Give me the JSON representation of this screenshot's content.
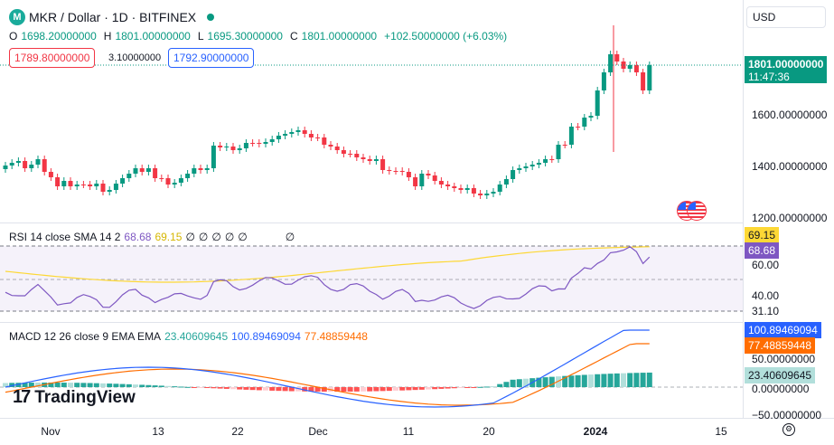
{
  "header": {
    "symbol_title": "MKR / Dollar · 1D · BITFINEX",
    "ohlc": {
      "o_label": "O",
      "o": "1698.20000000",
      "h_label": "H",
      "h": "1801.00000000",
      "l_label": "L",
      "l": "1695.30000000",
      "c_label": "C",
      "c": "1801.00000000",
      "change": "+102.50000000 (+6.03%)"
    },
    "sell_price": "1789.80000000",
    "spread": "3.10000000",
    "buy_price": "1792.90000000"
  },
  "currency": "USD",
  "price_axis": {
    "current_price": "1801.00000000",
    "countdown": "11:47:36",
    "ticks": [
      "1600.00000000",
      "1400.00000000",
      "1200.00000000"
    ]
  },
  "rsi": {
    "legend": "RSI 14 close SMA 14 2",
    "value": "68.68",
    "sma": "69.15",
    "zeros": [
      "∅",
      "∅",
      "∅",
      "∅",
      "∅"
    ],
    "extra_zero": "∅",
    "ticks": [
      "60.00",
      "40.00",
      "31.10"
    ],
    "tag_sma": "69.15",
    "tag_rsi": "68.68"
  },
  "macd": {
    "legend": "MACD 12 26 close 9 EMA EMA",
    "hist": "23.40609645",
    "macd": "100.89469094",
    "signal": "77.48859448",
    "ticks": [
      "50.00000000",
      "0.00000000",
      "−50.00000000"
    ]
  },
  "x_axis": {
    "labels": [
      {
        "t": "Nov",
        "x": 56
      },
      {
        "t": "13",
        "x": 175
      },
      {
        "t": "22",
        "x": 263
      },
      {
        "t": "Dec",
        "x": 352
      },
      {
        "t": "11",
        "x": 452
      },
      {
        "t": "20",
        "x": 541
      },
      {
        "t": "2024",
        "x": 659
      },
      {
        "t": "15",
        "x": 798
      }
    ]
  },
  "watermark": "TradingView",
  "colors": {
    "up": "#089981",
    "down": "#f23645",
    "rsi": "#7e57c2",
    "rsi_sma": "#fdd835",
    "macd": "#2962ff",
    "signal": "#ff6d00",
    "hist_up": "#26a69a",
    "hist_up_light": "#b2dfdb",
    "hist_down": "#ff5252",
    "hist_down_light": "#ffcdd2"
  }
}
